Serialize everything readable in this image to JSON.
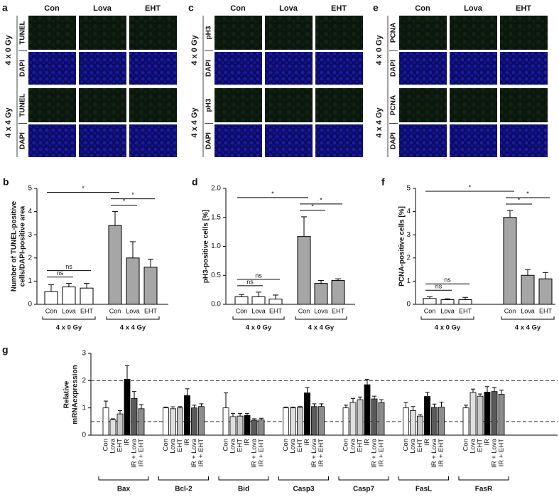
{
  "micrographs": [
    {
      "letter": "a",
      "columns": [
        "Con",
        "Lova",
        "EHT"
      ],
      "groups": [
        {
          "label": "4 x 0 Gy",
          "rows": [
            "TUNEL",
            "DAPI"
          ]
        },
        {
          "label": "4 x 4 Gy",
          "rows": [
            "TUNEL",
            "DAPI"
          ]
        }
      ]
    },
    {
      "letter": "c",
      "columns": [
        "Con",
        "Lova",
        "EHT"
      ],
      "groups": [
        {
          "label": "4 x 0 Gy",
          "rows": [
            "pH3",
            "DAPI"
          ]
        },
        {
          "label": "4 x 4 Gy",
          "rows": [
            "pH3",
            "DAPI"
          ]
        }
      ]
    },
    {
      "letter": "e",
      "columns": [
        "Con",
        "Lova",
        "EHT"
      ],
      "groups": [
        {
          "label": "4 x 0 Gy",
          "rows": [
            "PCNA",
            "DAPI"
          ]
        },
        {
          "label": "4 x 4 Gy",
          "rows": [
            "PCNA",
            "DAPI"
          ]
        }
      ]
    }
  ],
  "chart_data": [
    {
      "type": "grouped_bar",
      "panel": "b",
      "ylabel": [
        "Number of TUNEL-positive",
        "cells/DAPI-positive area"
      ],
      "ylim": [
        0,
        5
      ],
      "yticks": [
        0,
        1,
        2,
        3,
        4,
        5
      ],
      "groups": [
        {
          "label": "4 x 0 Gy",
          "color": "#ffffff",
          "categories": [
            "Con",
            "Lova",
            "EHT"
          ],
          "values": [
            0.55,
            0.75,
            0.7
          ],
          "errors": [
            0.3,
            0.15,
            0.2
          ]
        },
        {
          "label": "4 x 4 Gy",
          "color": "#a6a6a6",
          "categories": [
            "Con",
            "Lova",
            "EHT"
          ],
          "values": [
            3.4,
            2.0,
            1.6
          ],
          "errors": [
            0.6,
            0.7,
            0.35
          ]
        }
      ],
      "brackets": [
        {
          "between": [
            0,
            1
          ],
          "label": "ns"
        },
        {
          "between": [
            0,
            2
          ],
          "label": "ns"
        },
        {
          "between": [
            3,
            4
          ],
          "label": "*"
        },
        {
          "between": [
            3,
            5
          ],
          "label": "*"
        },
        {
          "between": [
            0,
            3
          ],
          "label": "*"
        }
      ]
    },
    {
      "type": "grouped_bar",
      "panel": "d",
      "ylabel": "pH3-positive cells [%]",
      "ylim": [
        0,
        2
      ],
      "yticks": [
        {
          "value": 0,
          "label": "0.0"
        },
        0.5,
        {
          "value": 1,
          "label": "1.0"
        },
        1.5,
        {
          "value": 2,
          "label": "2.0"
        }
      ],
      "groups": [
        {
          "label": "4 x 0 Gy",
          "color": "#ffffff",
          "categories": [
            "Con",
            "Lova",
            "EHT"
          ],
          "values": [
            0.13,
            0.13,
            0.09
          ],
          "errors": [
            0.04,
            0.08,
            0.07
          ]
        },
        {
          "label": "4 x 4 Gy",
          "color": "#a6a6a6",
          "categories": [
            "Con",
            "Lova",
            "EHT"
          ],
          "values": [
            1.17,
            0.36,
            0.41
          ],
          "errors": [
            0.34,
            0.05,
            0.03
          ]
        }
      ],
      "brackets": [
        {
          "between": [
            0,
            1
          ],
          "label": "ns"
        },
        {
          "between": [
            0,
            2
          ],
          "label": "ns"
        },
        {
          "between": [
            3,
            4
          ],
          "label": "*"
        },
        {
          "between": [
            3,
            5
          ],
          "label": "*"
        },
        {
          "between": [
            0,
            3
          ],
          "label": "*"
        }
      ]
    },
    {
      "type": "grouped_bar",
      "panel": "f",
      "ylabel": "PCNA-positive cells [%]",
      "ylim": [
        0,
        5
      ],
      "yticks": [
        0,
        1,
        2,
        3,
        4,
        5
      ],
      "groups": [
        {
          "label": "4 x 0 Gy",
          "color": "#ffffff",
          "categories": [
            "Con",
            "Lova",
            "EHT"
          ],
          "values": [
            0.25,
            0.2,
            0.2
          ],
          "errors": [
            0.08,
            0.04,
            0.1
          ]
        },
        {
          "label": "4 x 4 Gy",
          "color": "#a6a6a6",
          "categories": [
            "Con",
            "Lova",
            "EHT"
          ],
          "values": [
            3.75,
            1.25,
            1.1
          ],
          "errors": [
            0.3,
            0.25,
            0.27
          ]
        }
      ],
      "brackets": [
        {
          "between": [
            0,
            1
          ],
          "label": "ns"
        },
        {
          "between": [
            0,
            2
          ],
          "label": "ns"
        },
        {
          "between": [
            3,
            4
          ],
          "label": "*"
        },
        {
          "between": [
            3,
            5
          ],
          "label": "*"
        },
        {
          "between": [
            0,
            3
          ],
          "label": "*"
        }
      ]
    },
    {
      "type": "bar",
      "panel": "g",
      "ylabel": [
        "Relative",
        "mRNAexpression"
      ],
      "ylim": [
        0,
        3
      ],
      "yticks": [
        0,
        1,
        2,
        3
      ],
      "reference_lines": [
        2,
        0.5
      ],
      "categories": [
        "Bax",
        "Bcl-2",
        "Bid",
        "Casp3",
        "Casp7",
        "FasL",
        "FasR"
      ],
      "series": [
        {
          "name": "Con",
          "color": "#ffffff",
          "values": [
            1.0,
            1.0,
            1.0,
            1.0,
            1.0,
            1.0,
            1.0
          ],
          "errors": [
            0.25,
            0.03,
            0.55,
            0.03,
            0.1,
            0.2,
            0.1
          ]
        },
        {
          "name": "Lova",
          "color": "#e0e0e0",
          "values": [
            0.57,
            0.97,
            0.68,
            1.0,
            1.2,
            0.9,
            1.57
          ],
          "errors": [
            0.03,
            0.07,
            0.12,
            0.03,
            0.15,
            0.15,
            0.12
          ]
        },
        {
          "name": "EHT",
          "color": "#c8c8c8",
          "values": [
            0.78,
            1.0,
            0.7,
            1.02,
            1.3,
            0.7,
            1.43
          ],
          "errors": [
            0.12,
            0.05,
            0.1,
            0.03,
            0.1,
            0.05,
            0.08
          ]
        },
        {
          "name": "IR",
          "color": "#000000",
          "values": [
            2.05,
            1.45,
            0.72,
            1.55,
            1.85,
            1.42,
            1.58
          ],
          "errors": [
            0.5,
            0.25,
            0.08,
            0.2,
            0.2,
            0.15,
            0.2
          ]
        },
        {
          "name": "IR + Lova",
          "color": "#595959",
          "values": [
            1.35,
            1.0,
            0.55,
            1.05,
            1.33,
            1.02,
            1.6
          ],
          "errors": [
            0.25,
            0.1,
            0.05,
            0.1,
            0.1,
            0.12,
            0.15
          ]
        },
        {
          "name": "IR + EHT",
          "color": "#8c8c8c",
          "values": [
            0.97,
            1.05,
            0.56,
            1.05,
            1.2,
            1.03,
            1.5
          ],
          "errors": [
            0.15,
            0.1,
            0.06,
            0.1,
            0.1,
            0.18,
            0.15
          ]
        }
      ]
    }
  ]
}
